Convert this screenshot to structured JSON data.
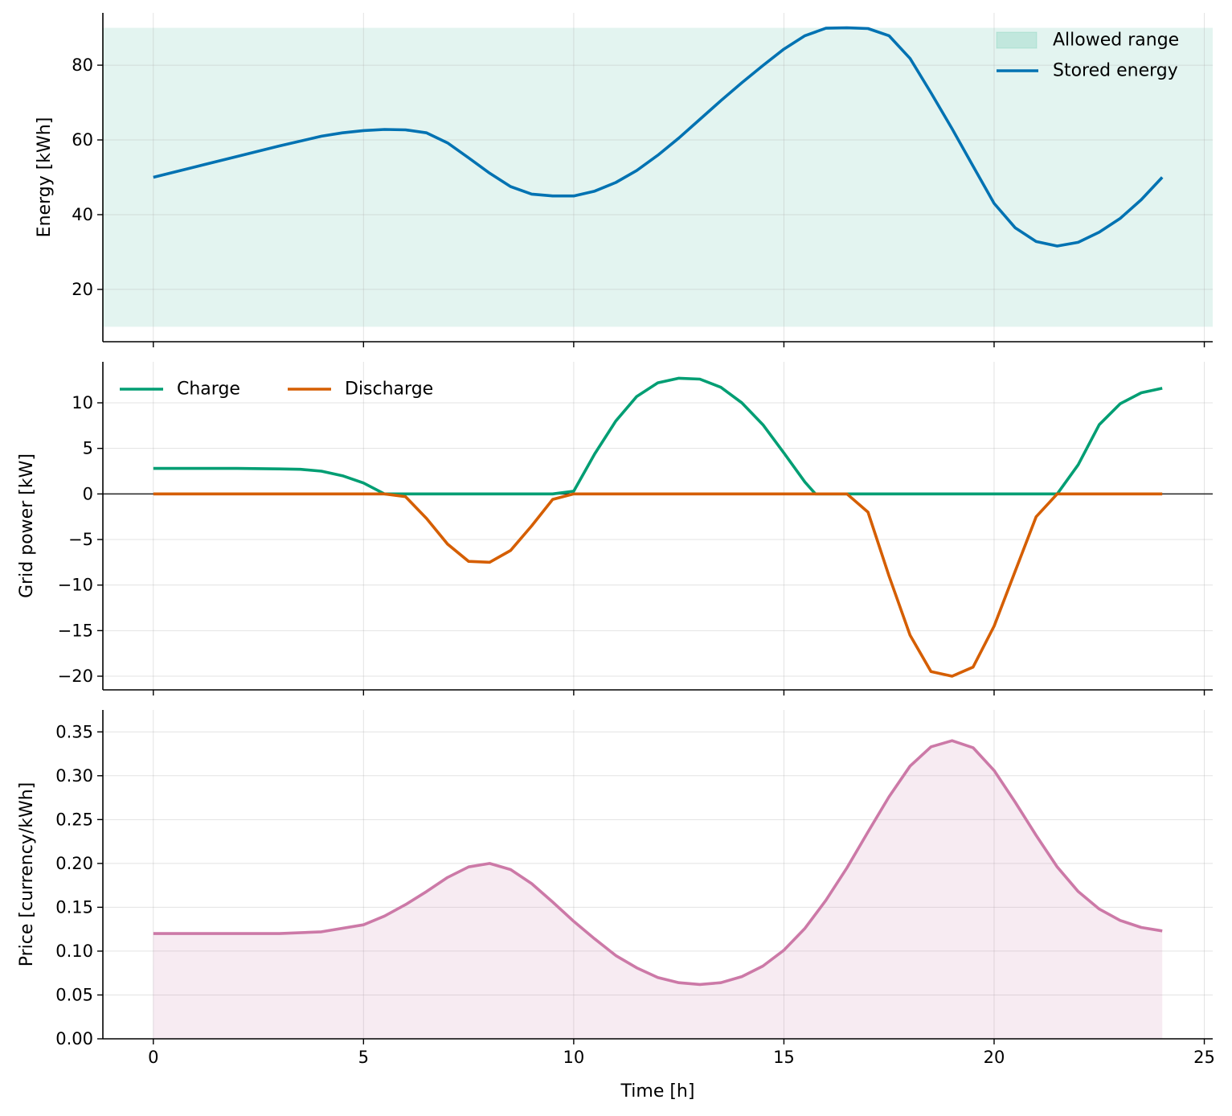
{
  "chart_data": [
    {
      "type": "line",
      "ylabel": "Energy [kWh]",
      "xlim": [
        -1.2,
        25.2
      ],
      "ylim": [
        6.0,
        94.0
      ],
      "yticks": [
        20,
        40,
        60,
        80
      ],
      "yticks_labels": [
        "20",
        "40",
        "60",
        "80"
      ],
      "xticks": [
        0,
        5,
        10,
        15,
        20,
        25
      ],
      "grid": true,
      "legend": [
        "Allowed range",
        "Stored energy"
      ],
      "legend_position": "top-right",
      "band": {
        "name": "Allowed range",
        "color": "#009E73",
        "y_min": 10,
        "y_max": 90
      },
      "series": [
        {
          "name": "Stored energy",
          "color": "#0072B2",
          "x": [
            0,
            1,
            2,
            3,
            4,
            4.5,
            5,
            5.5,
            6,
            6.5,
            7,
            7.5,
            8,
            8.5,
            9,
            9.5,
            10,
            10.5,
            11,
            11.5,
            12,
            12.5,
            13,
            13.5,
            14,
            14.5,
            15,
            15.5,
            16,
            16.5,
            17,
            17.5,
            18,
            18.5,
            19,
            19.5,
            20,
            20.5,
            21,
            21.5,
            22,
            22.5,
            23,
            23.5,
            24
          ],
          "y": [
            50,
            52.8,
            55.6,
            58.4,
            61.0,
            61.9,
            62.5,
            62.8,
            62.7,
            61.9,
            59.2,
            55.2,
            51.1,
            47.5,
            45.5,
            45.0,
            45.0,
            46.3,
            48.6,
            51.8,
            55.9,
            60.5,
            65.5,
            70.5,
            75.3,
            79.9,
            84.3,
            87.9,
            89.9,
            90.0,
            89.8,
            87.9,
            81.8,
            72.6,
            63.0,
            53.0,
            43.0,
            36.5,
            32.8,
            31.6,
            32.6,
            35.3,
            39.0,
            44.0,
            50.0
          ]
        }
      ]
    },
    {
      "type": "line",
      "ylabel": "Grid power [kW]",
      "xlim": [
        -1.2,
        25.2
      ],
      "ylim": [
        -21.5,
        14.5
      ],
      "yticks": [
        -20,
        -15,
        -10,
        -5,
        0,
        5,
        10
      ],
      "yticks_labels": [
        "−20",
        "−15",
        "−10",
        "−5",
        "0",
        "5",
        "10"
      ],
      "xticks": [
        0,
        5,
        10,
        15,
        20,
        25
      ],
      "grid": true,
      "zero_line": true,
      "legend": [
        "Charge",
        "Discharge"
      ],
      "legend_position": "top-left",
      "series": [
        {
          "name": "Charge",
          "color": "#009E73",
          "x": [
            0,
            1,
            2,
            3,
            3.5,
            4,
            4.5,
            5,
            5.5,
            6,
            7,
            8,
            9,
            9.5,
            10,
            10.5,
            11,
            11.5,
            12,
            12.5,
            13,
            13.5,
            14,
            14.5,
            15,
            15.5,
            15.75,
            16,
            17,
            18,
            19,
            20,
            21,
            21.5,
            22,
            22.5,
            23,
            23.5,
            24
          ],
          "y": [
            2.8,
            2.8,
            2.8,
            2.75,
            2.7,
            2.5,
            2.0,
            1.2,
            0.0,
            0.0,
            0.0,
            0.0,
            0.0,
            0.0,
            0.3,
            4.4,
            8.0,
            10.7,
            12.2,
            12.7,
            12.6,
            11.7,
            10.0,
            7.6,
            4.5,
            1.3,
            0.0,
            0.0,
            0.0,
            0.0,
            0.0,
            0.0,
            0.0,
            0.0,
            3.2,
            7.6,
            9.9,
            11.1,
            11.6
          ]
        },
        {
          "name": "Discharge",
          "color": "#D55E00",
          "x": [
            0,
            2,
            4,
            5.5,
            6,
            6.5,
            7,
            7.5,
            8,
            8.5,
            9,
            9.5,
            10,
            11,
            13,
            15,
            16.5,
            17,
            17.5,
            18,
            18.5,
            19,
            19.5,
            20,
            20.5,
            21,
            21.5,
            22,
            23,
            24
          ],
          "y": [
            0,
            0,
            0,
            0,
            -0.3,
            -2.7,
            -5.5,
            -7.4,
            -7.5,
            -6.2,
            -3.5,
            -0.6,
            0,
            0,
            0,
            0,
            0,
            -2.0,
            -9.0,
            -15.5,
            -19.5,
            -20.0,
            -19.0,
            -14.5,
            -8.5,
            -2.5,
            0,
            0,
            0,
            0
          ]
        }
      ]
    },
    {
      "type": "area",
      "ylabel": "Price [currency/kWh]",
      "xlabel": "Time [h]",
      "xlim": [
        -1.2,
        25.2
      ],
      "ylim": [
        0.0,
        0.375
      ],
      "yticks": [
        0.0,
        0.05,
        0.1,
        0.15,
        0.2,
        0.25,
        0.3,
        0.35
      ],
      "yticks_labels": [
        "0.00",
        "0.05",
        "0.10",
        "0.15",
        "0.20",
        "0.25",
        "0.30",
        "0.35"
      ],
      "xticks": [
        0,
        5,
        10,
        15,
        20,
        25
      ],
      "xticks_labels": [
        "0",
        "5",
        "10",
        "15",
        "20",
        "25"
      ],
      "grid": true,
      "series": [
        {
          "name": "Price",
          "color": "#CC79A7",
          "x": [
            0,
            1,
            2,
            3,
            4,
            5,
            5.5,
            6,
            6.5,
            7,
            7.5,
            8,
            8.5,
            9,
            9.5,
            10,
            10.5,
            11,
            11.5,
            12,
            12.5,
            13,
            13.5,
            14,
            14.5,
            15,
            15.5,
            16,
            16.5,
            17,
            17.5,
            18,
            18.5,
            19,
            19.5,
            20,
            20.5,
            21,
            21.5,
            22,
            22.5,
            23,
            23.5,
            24
          ],
          "y": [
            0.12,
            0.12,
            0.12,
            0.12,
            0.122,
            0.13,
            0.14,
            0.153,
            0.168,
            0.184,
            0.196,
            0.2,
            0.193,
            0.177,
            0.156,
            0.134,
            0.114,
            0.095,
            0.081,
            0.07,
            0.064,
            0.062,
            0.064,
            0.071,
            0.083,
            0.101,
            0.126,
            0.158,
            0.195,
            0.236,
            0.276,
            0.311,
            0.333,
            0.34,
            0.332,
            0.306,
            0.27,
            0.232,
            0.196,
            0.168,
            0.148,
            0.135,
            0.127,
            0.123
          ]
        }
      ]
    }
  ]
}
